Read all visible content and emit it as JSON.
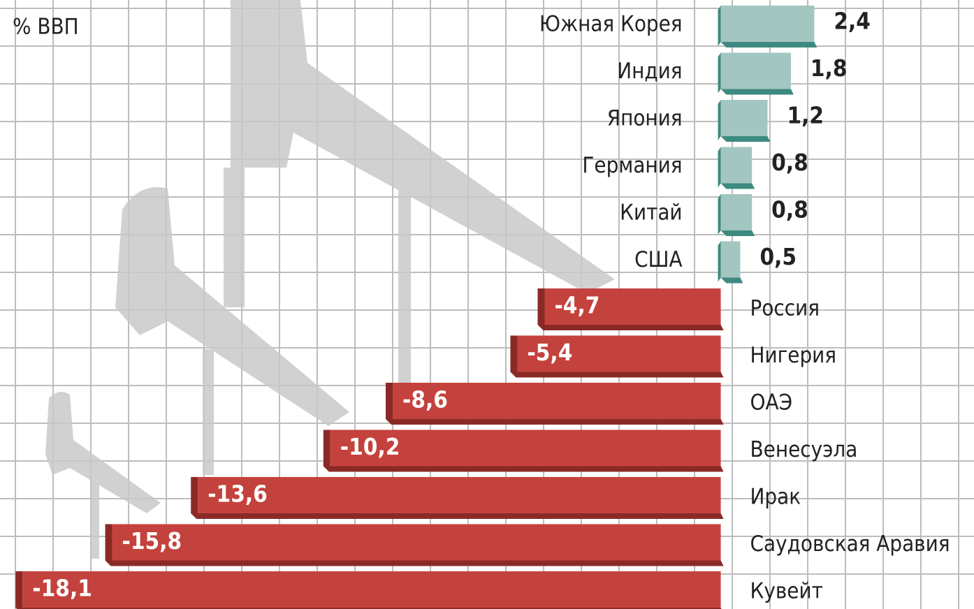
{
  "chart_data": {
    "type": "bar",
    "orientation": "horizontal",
    "unit_label": "% ВВП",
    "categories": [
      "Южная Корея",
      "Индия",
      "Япония",
      "Германия",
      "Китай",
      "США",
      "Россия",
      "Нигерия",
      "ОАЭ",
      "Венесуэла",
      "Ирак",
      "Саудовская Аравия",
      "Кувейт"
    ],
    "values": [
      2.4,
      1.8,
      1.2,
      0.8,
      0.8,
      0.5,
      -4.7,
      -5.4,
      -8.6,
      -10.2,
      -13.6,
      -15.8,
      -18.1
    ],
    "value_labels": [
      "2,4",
      "1,8",
      "1,2",
      "0,8",
      "0,8",
      "0,5",
      "-4,7",
      "-5,4",
      "-8,6",
      "-10,2",
      "-13,6",
      "-15,8",
      "-18,1"
    ],
    "positive_color": "#a3c6c0",
    "negative_color": "#c4423d",
    "xlim": [
      -18.5,
      6.5
    ],
    "grid": true
  }
}
